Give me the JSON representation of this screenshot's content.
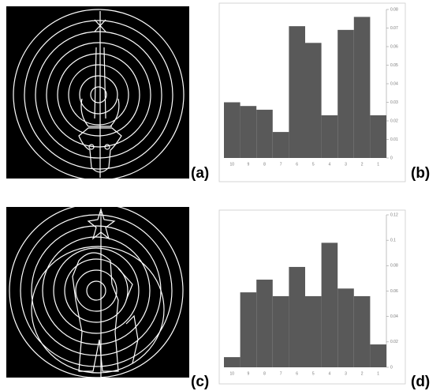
{
  "panels": [
    "(a)",
    "(b)",
    "(c)",
    "(d)"
  ],
  "chart_data": [
    {
      "type": "bar",
      "categories": [
        "10",
        "9",
        "8",
        "7",
        "6",
        "5",
        "4",
        "3",
        "2",
        "1"
      ],
      "values": [
        0.03,
        0.028,
        0.026,
        0.014,
        0.071,
        0.062,
        0.023,
        0.069,
        0.076,
        0.023
      ],
      "color": "#595959",
      "ylim": [
        0,
        0.08
      ],
      "yticks": [
        0,
        0.01,
        0.02,
        0.03,
        0.04,
        0.05,
        0.06,
        0.07,
        0.08
      ]
    },
    {
      "type": "bar",
      "categories": [
        "10",
        "9",
        "8",
        "7",
        "6",
        "5",
        "4",
        "3",
        "2",
        "1"
      ],
      "values": [
        0.008,
        0.059,
        0.069,
        0.056,
        0.079,
        0.056,
        0.098,
        0.062,
        0.056,
        0.018
      ],
      "color": "#595959",
      "ylim": [
        0,
        0.12
      ],
      "yticks": [
        0,
        0.02,
        0.04,
        0.06,
        0.08,
        0.1,
        0.12
      ]
    }
  ]
}
